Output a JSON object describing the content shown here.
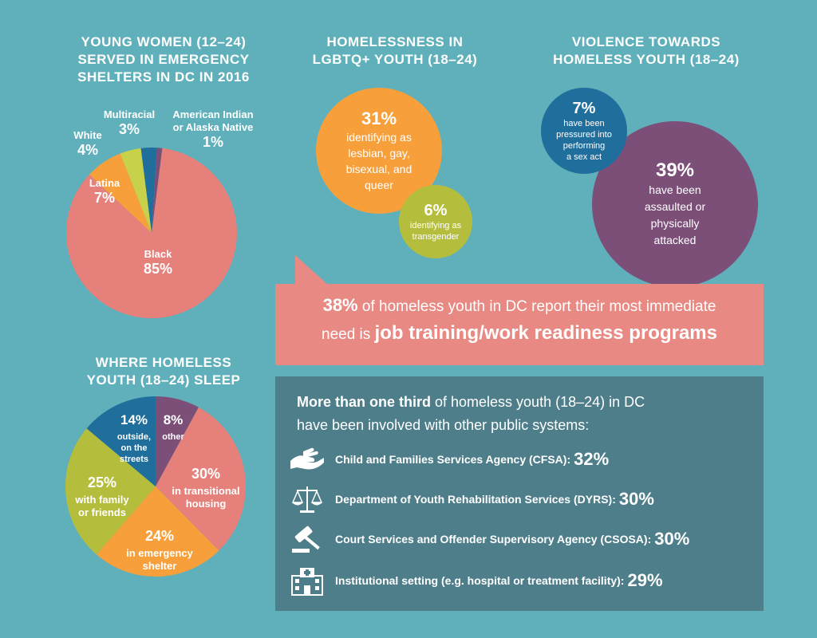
{
  "pie1": {
    "title": [
      "YOUNG WOMEN (12–24)",
      "SERVED IN EMERGENCY",
      "SHELTERS IN DC IN 2016"
    ],
    "colors": [
      "#e5807a",
      "#f7a03b",
      "#c7d14a",
      "#1f6e9c",
      "#7b4f78"
    ]
  },
  "pie2": {
    "title": [
      "WHERE HOMELESS",
      "YOUTH (18–24) SLEEP"
    ],
    "colors": [
      "#7b4f78",
      "#e5807a",
      "#f7a03b",
      "#b5be3c",
      "#1f6e9c"
    ]
  },
  "lgbtq": {
    "title": [
      "HOMELESSNESS IN",
      "LGBTQ+ YOUTH (18–24)"
    ],
    "big": {
      "value": "31%",
      "desc": [
        "identifying as",
        "lesbian, gay,",
        "bisexual, and",
        "queer"
      ],
      "color": "#f7a03b"
    },
    "small": {
      "value": "6%",
      "desc": [
        "identifying as",
        "transgender"
      ],
      "color": "#b5be3c"
    }
  },
  "violence": {
    "title": [
      "VIOLENCE TOWARDS",
      "HOMELESS YOUTH (18–24)"
    ],
    "big": {
      "value": "39%",
      "desc": [
        "have been",
        "assaulted or",
        "physically",
        "attacked"
      ],
      "color": "#7b4f78"
    },
    "small": {
      "value": "7%",
      "desc": [
        "have been",
        "pressured into",
        "performing",
        "a sex act"
      ],
      "color": "#1f6e9c"
    }
  },
  "callout": {
    "pct": "38%",
    "text1": " of homeless youth in DC report their most immediate",
    "text2": "need is ",
    "bold": "job training/work readiness programs"
  },
  "systems": {
    "intro_bold": "More than one third",
    "intro_rest": " of homeless youth (18–24) in DC",
    "intro_line2": "have been involved with other public systems:",
    "items": [
      {
        "icon": "helping-hand-icon",
        "label": "Child and Families Services Agency (CFSA):",
        "value": "32%"
      },
      {
        "icon": "justice-scales-icon",
        "label": "Department of Youth Rehabilitation Services (DYRS):",
        "value": "30%"
      },
      {
        "icon": "gavel-icon",
        "label": "Court Services and Offender Supervisory Agency (CSOSA):",
        "value": "30%"
      },
      {
        "icon": "hospital-icon",
        "label": "Institutional setting (e.g. hospital or treatment facility):",
        "value": "29%"
      }
    ]
  },
  "chart_data": [
    {
      "type": "pie",
      "title": "YOUNG WOMEN (12–24) SERVED IN EMERGENCY SHELTERS IN DC IN 2016",
      "categories": [
        "Black",
        "Latina",
        "White",
        "Multiracial",
        "American Indian or Alaska Native"
      ],
      "values": [
        85,
        7,
        4,
        3,
        1
      ],
      "labels": [
        {
          "name": [
            "Black"
          ],
          "pct": "85%"
        },
        {
          "name": [
            "Latina"
          ],
          "pct": "7%"
        },
        {
          "name": [
            "White"
          ],
          "pct": "4%"
        },
        {
          "name": [
            "Multiracial"
          ],
          "pct": "3%"
        },
        {
          "name": [
            "American Indian",
            "or Alaska Native"
          ],
          "pct": "1%"
        }
      ]
    },
    {
      "type": "pie",
      "title": "WHERE HOMELESS YOUTH (18–24) SLEEP",
      "categories": [
        "other",
        "in transitional housing",
        "in emergency shelter",
        "with family or friends",
        "outside, on the streets"
      ],
      "values": [
        8,
        30,
        24,
        25,
        14
      ],
      "labels": [
        {
          "name": [
            "other"
          ],
          "pct": "8%"
        },
        {
          "name": [
            "in transitional",
            "housing"
          ],
          "pct": "30%"
        },
        {
          "name": [
            "in emergency",
            "shelter"
          ],
          "pct": "24%"
        },
        {
          "name": [
            "with family",
            "or friends"
          ],
          "pct": "25%"
        },
        {
          "name": [
            "outside,",
            "on the",
            "streets"
          ],
          "pct": "14%"
        }
      ]
    }
  ]
}
